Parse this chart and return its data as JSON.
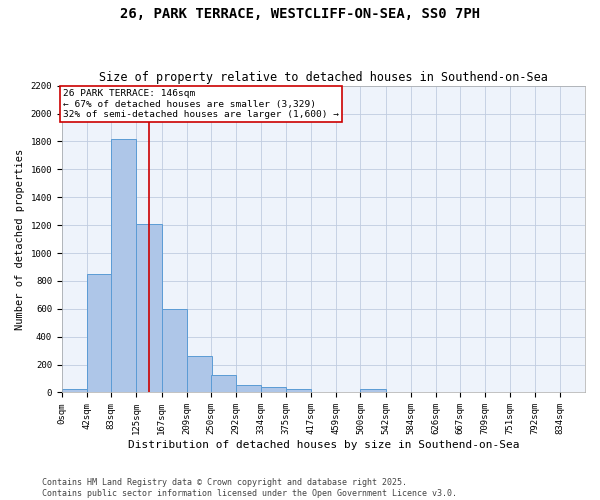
{
  "title": "26, PARK TERRACE, WESTCLIFF-ON-SEA, SS0 7PH",
  "subtitle": "Size of property relative to detached houses in Southend-on-Sea",
  "xlabel": "Distribution of detached houses by size in Southend-on-Sea",
  "ylabel": "Number of detached properties",
  "bin_labels": [
    "0sqm",
    "42sqm",
    "83sqm",
    "125sqm",
    "167sqm",
    "209sqm",
    "250sqm",
    "292sqm",
    "334sqm",
    "375sqm",
    "417sqm",
    "459sqm",
    "500sqm",
    "542sqm",
    "584sqm",
    "626sqm",
    "667sqm",
    "709sqm",
    "751sqm",
    "792sqm",
    "834sqm"
  ],
  "bin_edges": [
    0,
    42,
    83,
    125,
    167,
    209,
    250,
    292,
    334,
    375,
    417,
    459,
    500,
    542,
    584,
    626,
    667,
    709,
    751,
    792,
    834
  ],
  "bar_heights": [
    25,
    848,
    1820,
    1210,
    600,
    258,
    128,
    50,
    38,
    28,
    0,
    0,
    25,
    0,
    0,
    0,
    0,
    0,
    0,
    0
  ],
  "bar_color": "#aec6e8",
  "bar_edgecolor": "#5b9bd5",
  "bg_color": "#eef3fb",
  "grid_color": "#c0cce0",
  "vline_x": 146,
  "vline_color": "#cc0000",
  "annotation_text": "26 PARK TERRACE: 146sqm\n← 67% of detached houses are smaller (3,329)\n32% of semi-detached houses are larger (1,600) →",
  "annotation_box_color": "#cc0000",
  "ylim": [
    0,
    2200
  ],
  "yticks": [
    0,
    200,
    400,
    600,
    800,
    1000,
    1200,
    1400,
    1600,
    1800,
    2000,
    2200
  ],
  "footer_text": "Contains HM Land Registry data © Crown copyright and database right 2025.\nContains public sector information licensed under the Open Government Licence v3.0.",
  "title_fontsize": 10,
  "subtitle_fontsize": 8.5,
  "xlabel_fontsize": 8,
  "ylabel_fontsize": 7.5,
  "tick_fontsize": 6.5,
  "annotation_fontsize": 6.8,
  "footer_fontsize": 6
}
